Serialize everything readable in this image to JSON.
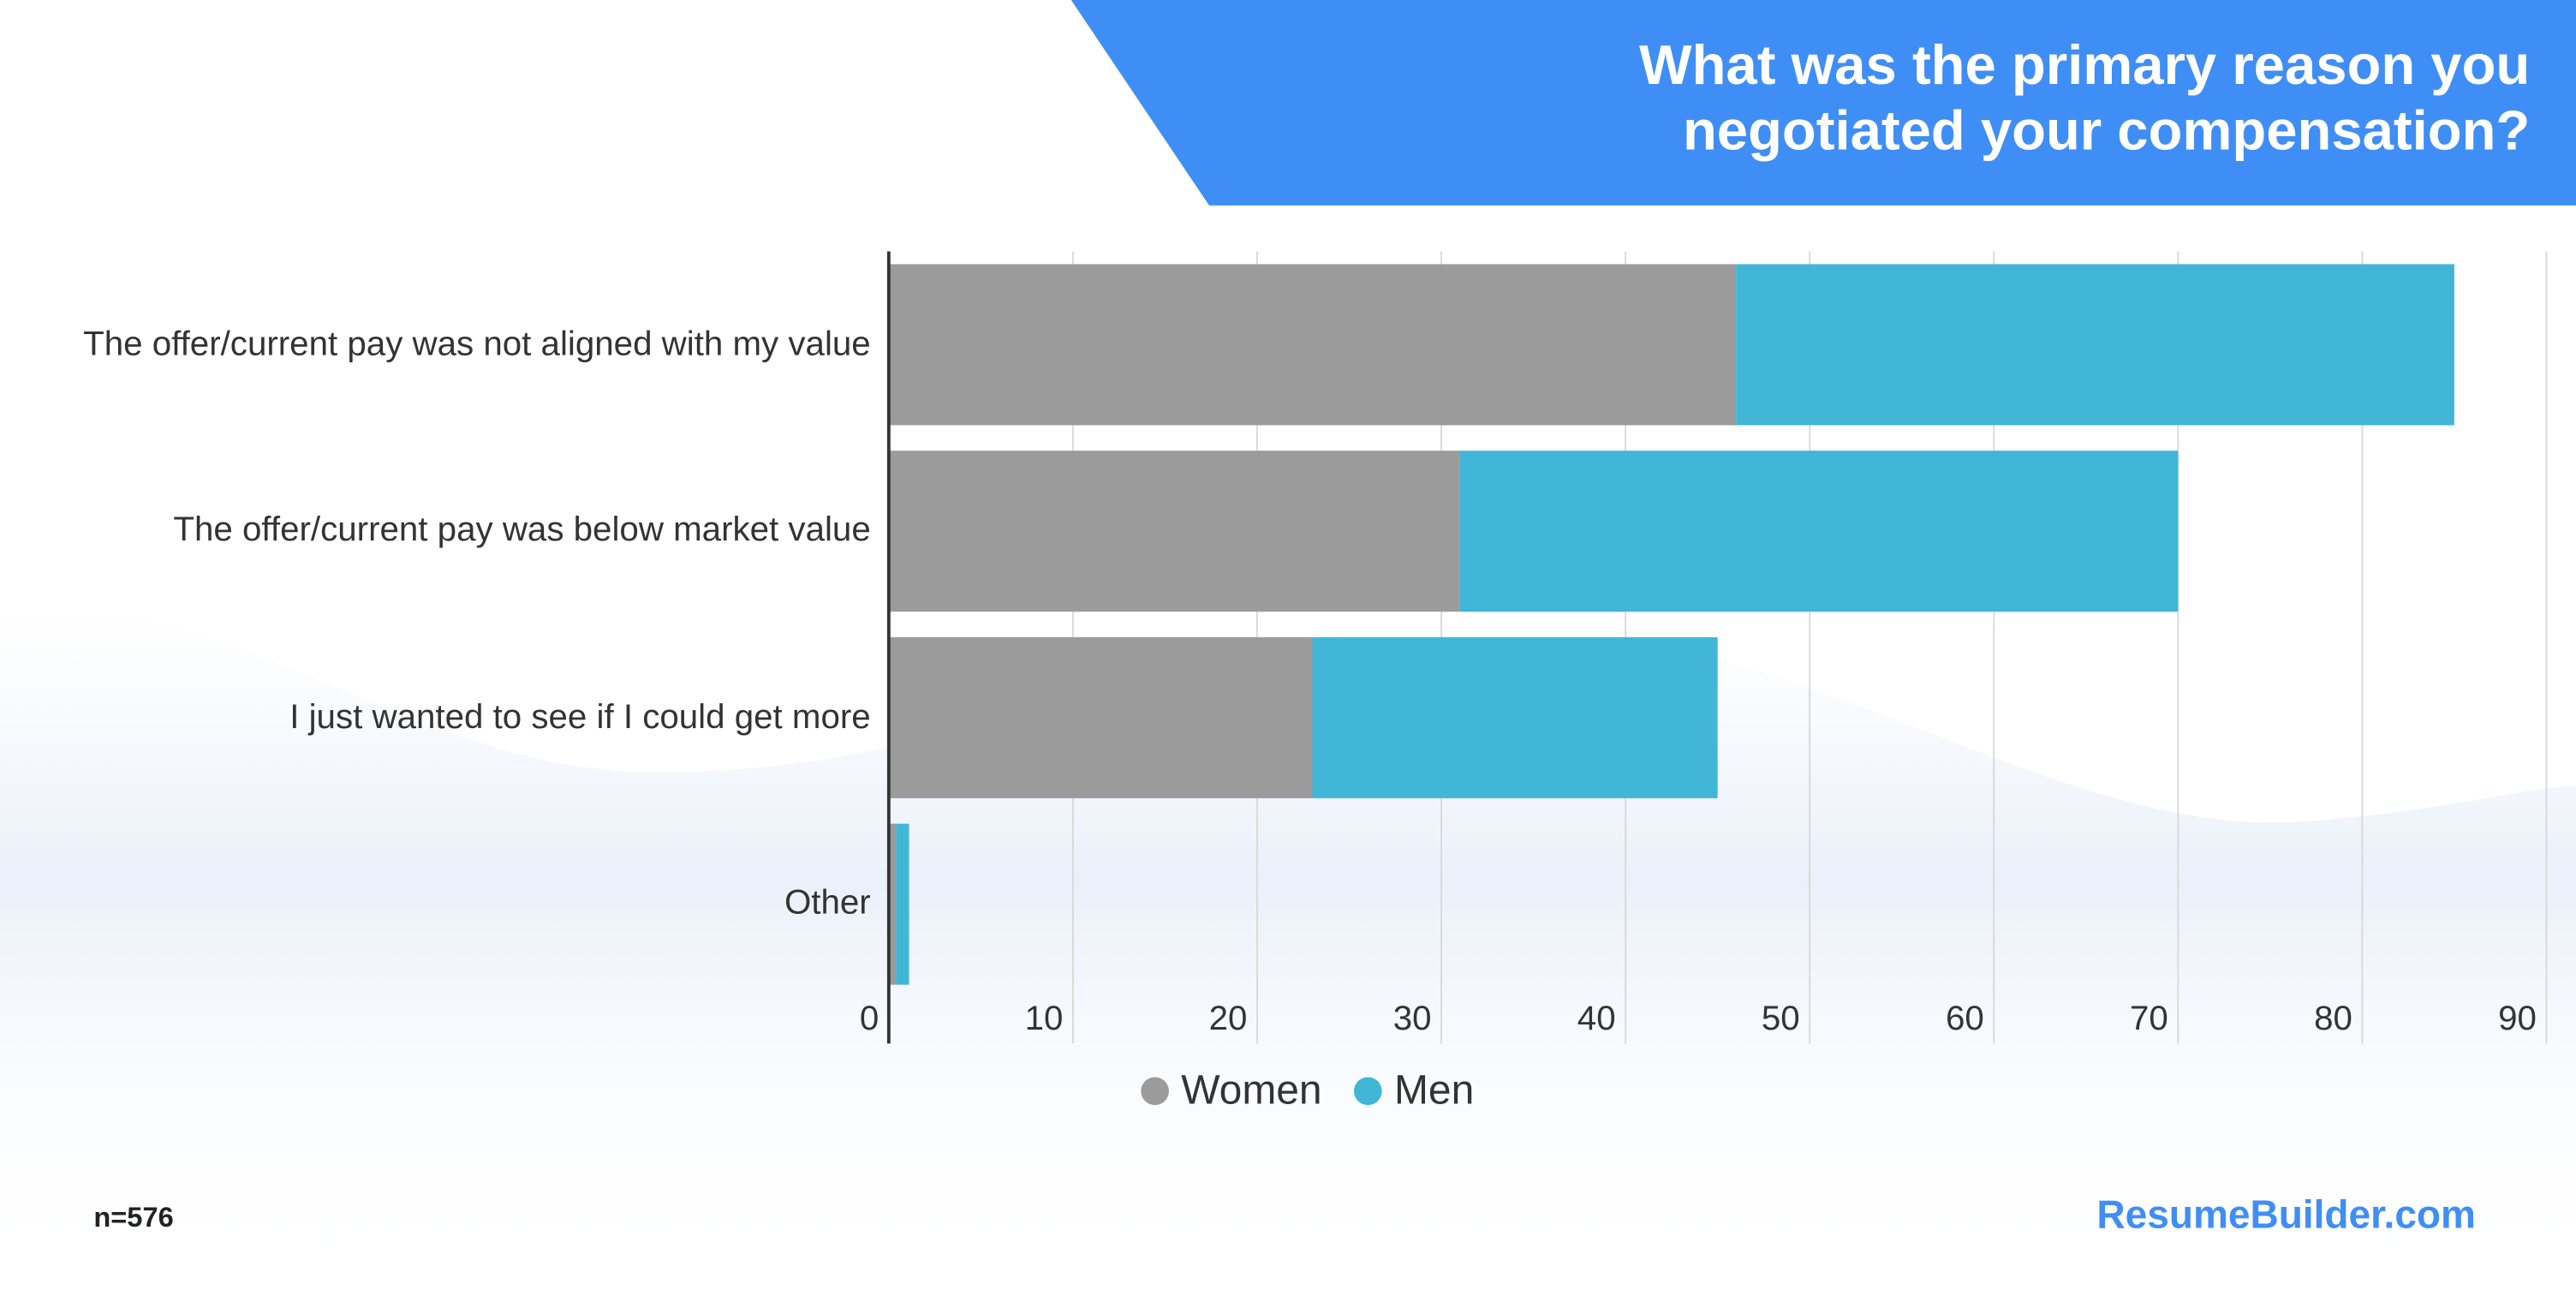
{
  "chart_data": {
    "type": "stacked_barh",
    "title": "What was the primary reason you negotiated your compensation?",
    "categories": [
      "The offer/current pay was not aligned with my value",
      "The offer/current pay was below market value",
      "I just wanted to see if I could get more",
      "Other"
    ],
    "series": [
      {
        "name": "Women",
        "color": "#9b9b9b",
        "values": [
          46,
          31,
          23,
          0.4
        ]
      },
      {
        "name": "Men",
        "color": "#41b6d6",
        "values": [
          39,
          39,
          22,
          0.7
        ]
      }
    ],
    "xlim": [
      0,
      90
    ],
    "xticks": [
      0,
      10,
      20,
      30,
      40,
      50,
      60,
      70,
      80,
      90
    ],
    "grid": true,
    "legend": "bottom",
    "sample_note": "n=576",
    "source": "ResumeBuilder.com"
  }
}
